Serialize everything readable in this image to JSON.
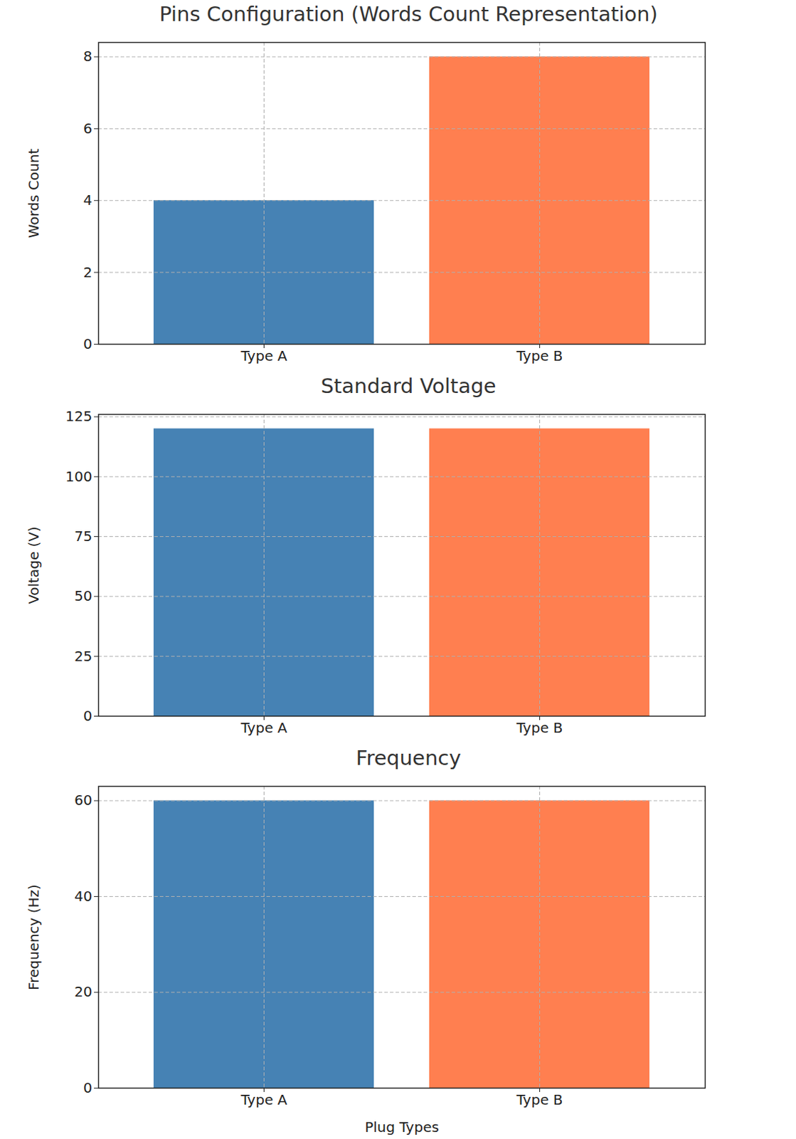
{
  "chart_data": [
    {
      "type": "bar",
      "title": "Pins Configuration (Words Count Representation)",
      "ylabel": "Words Count",
      "categories": [
        "Type A",
        "Type B"
      ],
      "values": [
        4,
        8
      ],
      "colors": [
        "#4682b4",
        "#ff7f50"
      ],
      "ylim": [
        0,
        8.4
      ],
      "yticks": [
        0,
        2,
        4,
        6,
        8
      ],
      "grid": true
    },
    {
      "type": "bar",
      "title": "Standard Voltage",
      "ylabel": "Voltage (V)",
      "categories": [
        "Type A",
        "Type B"
      ],
      "values": [
        120,
        120
      ],
      "colors": [
        "#4682b4",
        "#ff7f50"
      ],
      "ylim": [
        0,
        126
      ],
      "yticks": [
        0,
        25,
        50,
        75,
        100,
        125
      ],
      "grid": true
    },
    {
      "type": "bar",
      "title": "Frequency",
      "ylabel": "Frequency (Hz)",
      "xlabel": "Plug Types",
      "categories": [
        "Type A",
        "Type B"
      ],
      "values": [
        60,
        60
      ],
      "colors": [
        "#4682b4",
        "#ff7f50"
      ],
      "ylim": [
        0,
        63
      ],
      "yticks": [
        0,
        20,
        40,
        60
      ],
      "grid": true
    }
  ]
}
